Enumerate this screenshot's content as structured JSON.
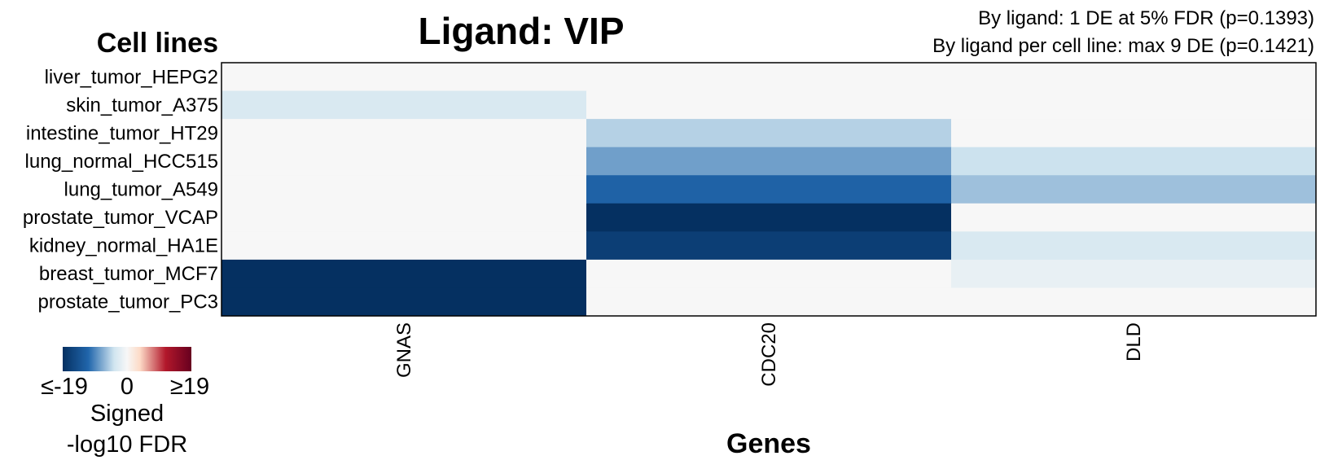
{
  "chart_data": {
    "type": "heatmap",
    "title": "Ligand: VIP",
    "stats": [
      "By ligand: 1 DE at 5% FDR (p=0.1393)",
      "By ligand per cell line: max 9 DE (p=0.1421)"
    ],
    "ylabel": "Cell lines",
    "xlabel": "Genes",
    "rows": [
      "liver_tumor_HEPG2",
      "skin_tumor_A375",
      "intestine_tumor_HT29",
      "lung_normal_HCC515",
      "lung_tumor_A549",
      "prostate_tumor_VCAP",
      "kidney_normal_HA1E",
      "breast_tumor_MCF7",
      "prostate_tumor_PC3"
    ],
    "columns": [
      "GNAS",
      "CDC20",
      "DLD"
    ],
    "values": [
      [
        0,
        0,
        0
      ],
      [
        -3,
        0,
        0
      ],
      [
        0,
        -5,
        0
      ],
      [
        0,
        -8,
        -4
      ],
      [
        0,
        -12,
        -6
      ],
      [
        0,
        -19,
        0
      ],
      [
        0,
        -17,
        -3
      ],
      [
        -19,
        0,
        -1.5
      ],
      [
        -19,
        0,
        0
      ]
    ],
    "legend": {
      "min_label": "≤-19",
      "mid_label": "0",
      "max_label": "≥19",
      "title_line1": "Signed",
      "title_line2": "-log10 FDR",
      "range": [
        -19,
        19
      ],
      "colors": {
        "low": "#053061",
        "low_mid": "#2166ac",
        "low_light": "#92c5de",
        "mid": "#f7f7f7",
        "high_light": "#f4a582",
        "high_mid": "#b2182b",
        "high": "#67001f"
      }
    }
  }
}
